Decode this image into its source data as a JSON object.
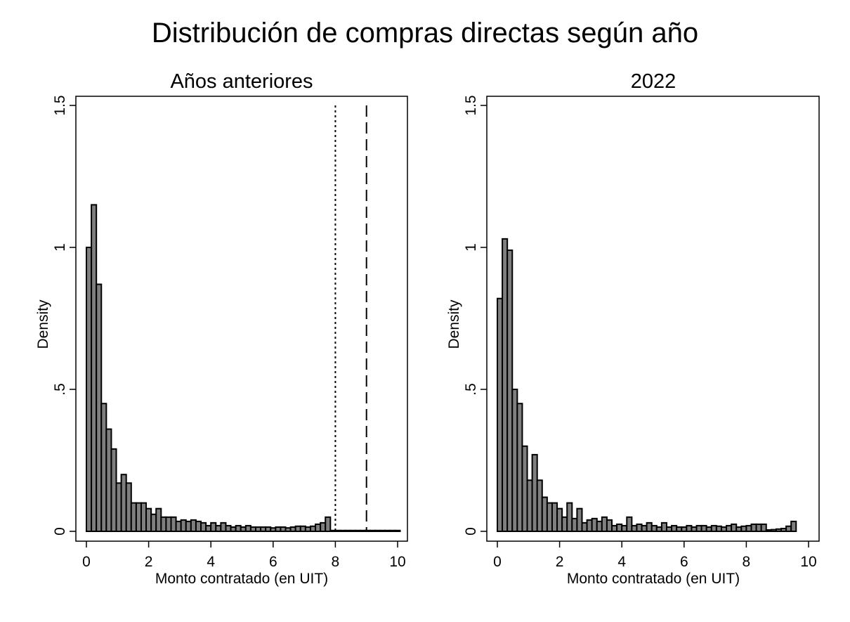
{
  "figure": {
    "title": "Distribución de compras directas según año"
  },
  "chart_data": [
    {
      "type": "bar",
      "title": "Años anteriores",
      "xlabel": "Monto contratado (en UIT)",
      "ylabel": "Density",
      "xlim": [
        -0.3,
        10.3
      ],
      "ylim": [
        0,
        1.5
      ],
      "xticks": [
        0,
        2,
        4,
        6,
        8,
        10
      ],
      "yticks": [
        0,
        0.5,
        1,
        1.5
      ],
      "ytick_labels": [
        "0",
        ".5",
        "1",
        "1.5"
      ],
      "bin_width": 0.16,
      "bin_start": 0,
      "values": [
        1.0,
        1.15,
        0.87,
        0.45,
        0.36,
        0.29,
        0.17,
        0.2,
        0.17,
        0.1,
        0.1,
        0.1,
        0.08,
        0.06,
        0.08,
        0.05,
        0.05,
        0.05,
        0.035,
        0.04,
        0.035,
        0.04,
        0.035,
        0.03,
        0.02,
        0.03,
        0.02,
        0.03,
        0.02,
        0.015,
        0.02,
        0.015,
        0.02,
        0.015,
        0.015,
        0.015,
        0.015,
        0.012,
        0.015,
        0.015,
        0.012,
        0.015,
        0.018,
        0.018,
        0.015,
        0.018,
        0.025,
        0.03,
        0.05,
        0.003,
        0.003,
        0.003,
        0.003,
        0.003,
        0.003,
        0.003,
        0.003,
        0.003,
        0.003,
        0.003,
        0.003,
        0.003,
        0.003
      ],
      "reference_lines": [
        {
          "x": 8,
          "style": "dotted"
        },
        {
          "x": 9,
          "style": "dashed"
        }
      ]
    },
    {
      "type": "bar",
      "title": "2022",
      "xlabel": "Monto contratado (en UIT)",
      "ylabel": "Density",
      "xlim": [
        -0.3,
        10.3
      ],
      "ylim": [
        0,
        1.5
      ],
      "xticks": [
        0,
        2,
        4,
        6,
        8,
        10
      ],
      "yticks": [
        0,
        0.5,
        1,
        1.5
      ],
      "ytick_labels": [
        "0",
        ".5",
        "1",
        "1.5"
      ],
      "bin_width": 0.16,
      "bin_start": 0,
      "values": [
        0.82,
        1.03,
        0.99,
        0.5,
        0.45,
        0.3,
        0.18,
        0.27,
        0.18,
        0.12,
        0.1,
        0.1,
        0.08,
        0.05,
        0.1,
        0.045,
        0.08,
        0.03,
        0.04,
        0.045,
        0.035,
        0.05,
        0.04,
        0.02,
        0.025,
        0.02,
        0.05,
        0.02,
        0.025,
        0.02,
        0.03,
        0.02,
        0.015,
        0.03,
        0.015,
        0.02,
        0.015,
        0.015,
        0.02,
        0.015,
        0.02,
        0.02,
        0.015,
        0.02,
        0.018,
        0.015,
        0.02,
        0.025,
        0.015,
        0.018,
        0.02,
        0.025,
        0.025,
        0.025,
        0.005,
        0.006,
        0.008,
        0.01,
        0.018,
        0.035
      ]
    }
  ]
}
